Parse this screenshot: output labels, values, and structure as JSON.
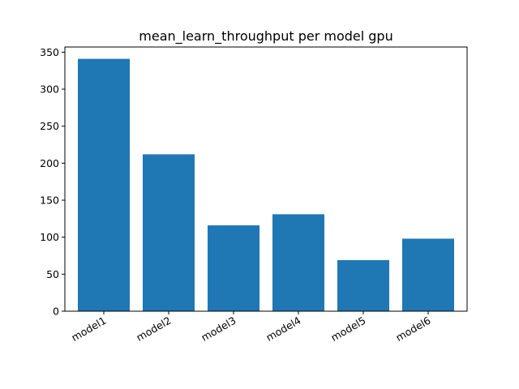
{
  "chart_data": {
    "type": "bar",
    "title": "mean_learn_throughput per model gpu",
    "xlabel": "",
    "ylabel": "",
    "categories": [
      "model1",
      "model2",
      "model3",
      "model4",
      "model5",
      "model6"
    ],
    "values": [
      341,
      212,
      116,
      131,
      69,
      98
    ],
    "ylim": [
      0,
      357
    ],
    "yticks": [
      0,
      50,
      100,
      150,
      200,
      250,
      300,
      350
    ],
    "bar_color": "#1f77b4",
    "grid": false,
    "legend": "none"
  }
}
